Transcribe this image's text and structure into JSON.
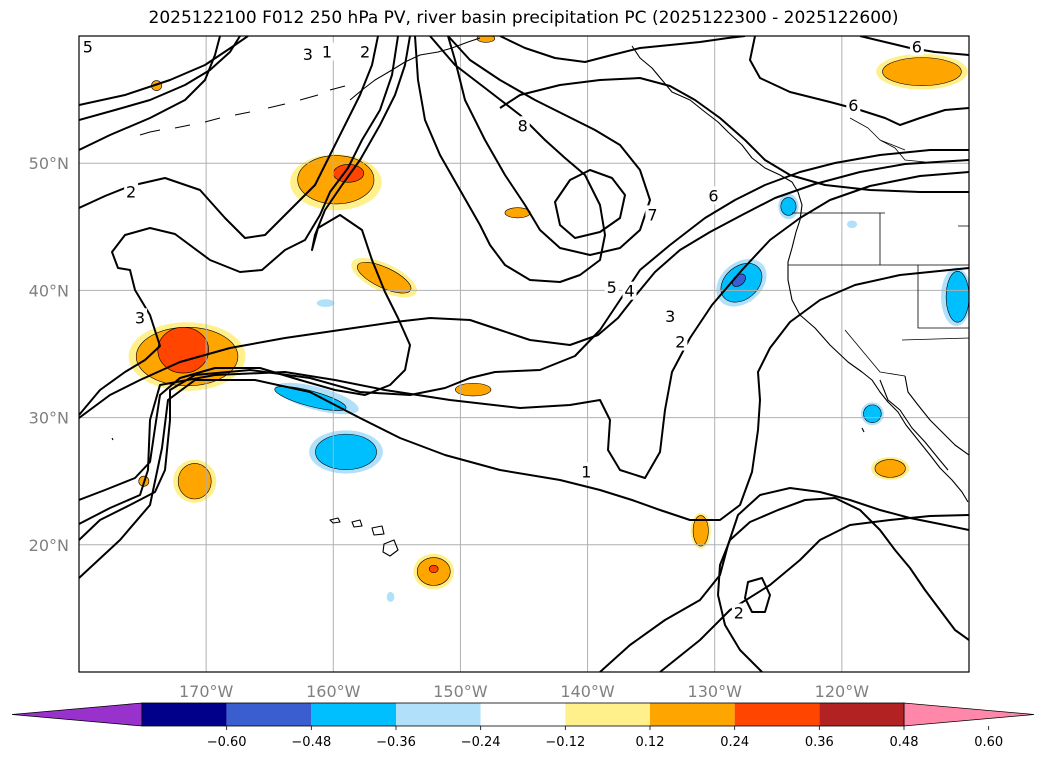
{
  "title": "2025122100 F012 250 hPa PV, river basin precipitation PC (2025122300 - 2025122600)",
  "map": {
    "lon_range": [
      -180,
      -110
    ],
    "lat_range": [
      10,
      60
    ],
    "lat_ticks": [
      {
        "value": 50,
        "label": "50°N"
      },
      {
        "value": 40,
        "label": "40°N"
      },
      {
        "value": 30,
        "label": "30°N"
      },
      {
        "value": 20,
        "label": "20°N"
      }
    ],
    "lon_ticks": [
      {
        "value": -170,
        "label": "170°W"
      },
      {
        "value": -160,
        "label": "160°W"
      },
      {
        "value": -150,
        "label": "150°W"
      },
      {
        "value": -140,
        "label": "140°W"
      },
      {
        "value": -130,
        "label": "130°W"
      },
      {
        "value": -120,
        "label": "120°W"
      }
    ],
    "grid": true,
    "contour_labels": [
      {
        "text": "1",
        "lon": -160.5,
        "lat": 58.7
      },
      {
        "text": "2",
        "lon": -157.5,
        "lat": 58.7
      },
      {
        "text": "3",
        "lon": -162,
        "lat": 58.5
      },
      {
        "text": "5",
        "lon": -179.3,
        "lat": 59.1
      },
      {
        "text": "2",
        "lon": -175.9,
        "lat": 47.7
      },
      {
        "text": "3",
        "lon": -175.2,
        "lat": 37.8
      },
      {
        "text": "8",
        "lon": -145.1,
        "lat": 52.9
      },
      {
        "text": "6",
        "lon": -114.1,
        "lat": 59.1
      },
      {
        "text": "6",
        "lon": -119.1,
        "lat": 54.5
      },
      {
        "text": "6",
        "lon": -130.1,
        "lat": 47.4
      },
      {
        "text": "7",
        "lon": -134.9,
        "lat": 45.9
      },
      {
        "text": "5",
        "lon": -138.1,
        "lat": 40.2
      },
      {
        "text": "4",
        "lon": -136.7,
        "lat": 39.9
      },
      {
        "text": "3",
        "lon": -133.5,
        "lat": 37.9
      },
      {
        "text": "2",
        "lon": -132.7,
        "lat": 35.9
      },
      {
        "text": "1",
        "lon": -140.1,
        "lat": 25.7
      },
      {
        "text": "2",
        "lon": -128.1,
        "lat": 14.6
      }
    ],
    "precip_regions": [
      {
        "color": "#fff08c",
        "lon": -159.8,
        "lat": 48.5,
        "rx": 3.6,
        "ry": 2.2,
        "rot": 0
      },
      {
        "color": "#ffa500",
        "lon": -159.8,
        "lat": 48.7,
        "rx": 3.0,
        "ry": 1.9,
        "rot": 0
      },
      {
        "color": "#ff4500",
        "lon": -158.8,
        "lat": 49.2,
        "rx": 1.2,
        "ry": 0.7,
        "rot": 0
      },
      {
        "color": "#fff08c",
        "lon": -156.0,
        "lat": 41.0,
        "rx": 2.8,
        "ry": 1.1,
        "rot": 25
      },
      {
        "color": "#ffa500",
        "lon": -156.0,
        "lat": 41.0,
        "rx": 2.3,
        "ry": 0.8,
        "rot": 25
      },
      {
        "color": "#fff08c",
        "lon": -171.5,
        "lat": 34.8,
        "rx": 4.6,
        "ry": 2.7,
        "rot": 0
      },
      {
        "color": "#ffa500",
        "lon": -171.5,
        "lat": 34.8,
        "rx": 4.0,
        "ry": 2.3,
        "rot": 0
      },
      {
        "color": "#ff4500",
        "lon": -171.8,
        "lat": 35.3,
        "rx": 2.0,
        "ry": 1.8,
        "rot": 0
      },
      {
        "color": "#fff08c",
        "lon": -170.9,
        "lat": 25.0,
        "rx": 1.7,
        "ry": 1.7,
        "rot": 0
      },
      {
        "color": "#ffa500",
        "lon": -170.9,
        "lat": 25.0,
        "rx": 1.3,
        "ry": 1.4,
        "rot": 0
      },
      {
        "color": "#ffa500",
        "lon": -174.9,
        "lat": 25.0,
        "rx": 0.4,
        "ry": 0.4,
        "rot": 0
      },
      {
        "color": "#ffa500",
        "lon": -149.0,
        "lat": 32.2,
        "rx": 1.4,
        "ry": 0.5,
        "rot": 0
      },
      {
        "color": "#ffa500",
        "lon": -145.5,
        "lat": 46.1,
        "rx": 1.0,
        "ry": 0.4,
        "rot": 0
      },
      {
        "color": "#ffa500",
        "lon": -173.9,
        "lat": 56.1,
        "rx": 0.4,
        "ry": 0.4,
        "rot": 0
      },
      {
        "color": "#ffa500",
        "lon": -148.0,
        "lat": 59.8,
        "rx": 0.7,
        "ry": 0.3,
        "rot": 0
      },
      {
        "color": "#fff08c",
        "lon": -131.1,
        "lat": 21.1,
        "rx": 0.8,
        "ry": 1.4,
        "rot": 0
      },
      {
        "color": "#ffa500",
        "lon": -131.1,
        "lat": 21.1,
        "rx": 0.6,
        "ry": 1.2,
        "rot": 0
      },
      {
        "color": "#fff08c",
        "lon": -152.1,
        "lat": 17.9,
        "rx": 1.6,
        "ry": 1.4,
        "rot": 0
      },
      {
        "color": "#ffa500",
        "lon": -152.1,
        "lat": 17.9,
        "rx": 1.3,
        "ry": 1.1,
        "rot": 0
      },
      {
        "color": "#ff4500",
        "lon": -152.1,
        "lat": 18.1,
        "rx": 0.35,
        "ry": 0.3,
        "rot": 0
      },
      {
        "color": "#fff08c",
        "lon": -113.7,
        "lat": 57.2,
        "rx": 3.6,
        "ry": 1.4,
        "rot": 0
      },
      {
        "color": "#ffa500",
        "lon": -113.7,
        "lat": 57.2,
        "rx": 3.1,
        "ry": 1.1,
        "rot": 0
      },
      {
        "color": "#fff08c",
        "lon": -116.2,
        "lat": 26.0,
        "rx": 1.5,
        "ry": 0.9,
        "rot": 0
      },
      {
        "color": "#ffa500",
        "lon": -116.2,
        "lat": 26.0,
        "rx": 1.2,
        "ry": 0.7,
        "rot": 0
      },
      {
        "color": "#b0e0fa",
        "lon": -161.3,
        "lat": 31.5,
        "rx": 3.4,
        "ry": 0.9,
        "rot": 15
      },
      {
        "color": "#00bfff",
        "lon": -161.8,
        "lat": 31.5,
        "rx": 2.9,
        "ry": 0.6,
        "rot": 15
      },
      {
        "color": "#b0e0fa",
        "lon": -159.0,
        "lat": 27.3,
        "rx": 2.9,
        "ry": 1.7,
        "rot": 0
      },
      {
        "color": "#00bfff",
        "lon": -159.0,
        "lat": 27.3,
        "rx": 2.4,
        "ry": 1.4,
        "rot": 0
      },
      {
        "color": "#b0e0fa",
        "lon": -127.9,
        "lat": 40.6,
        "rx": 2.2,
        "ry": 1.6,
        "rot": -40
      },
      {
        "color": "#00bfff",
        "lon": -127.9,
        "lat": 40.6,
        "rx": 1.8,
        "ry": 1.3,
        "rot": -40
      },
      {
        "color": "#3a5ed0",
        "lon": -128.1,
        "lat": 40.8,
        "rx": 0.6,
        "ry": 0.4,
        "rot": -40
      },
      {
        "color": "#b0e0fa",
        "lon": -124.2,
        "lat": 46.6,
        "rx": 0.8,
        "ry": 1.0,
        "rot": 0
      },
      {
        "color": "#00bfff",
        "lon": -124.2,
        "lat": 46.6,
        "rx": 0.6,
        "ry": 0.7,
        "rot": 0
      },
      {
        "color": "#b0e0fa",
        "lon": -117.6,
        "lat": 30.3,
        "rx": 0.9,
        "ry": 0.9,
        "rot": 0
      },
      {
        "color": "#00bfff",
        "lon": -117.6,
        "lat": 30.3,
        "rx": 0.7,
        "ry": 0.7,
        "rot": 0
      },
      {
        "color": "#b0e0fa",
        "lon": -111.0,
        "lat": 39.5,
        "rx": 1.2,
        "ry": 2.3,
        "rot": 0
      },
      {
        "color": "#00bfff",
        "lon": -110.9,
        "lat": 39.5,
        "rx": 0.9,
        "ry": 2.0,
        "rot": 0
      },
      {
        "color": "#b0e0fa",
        "lon": -119.2,
        "lat": 45.2,
        "rx": 0.4,
        "ry": 0.3,
        "rot": 0
      },
      {
        "color": "#b0e0fa",
        "lon": -160.6,
        "lat": 39.0,
        "rx": 0.7,
        "ry": 0.3,
        "rot": 0
      },
      {
        "color": "#b0e0fa",
        "lon": -155.5,
        "lat": 15.9,
        "rx": 0.3,
        "ry": 0.4,
        "rot": 0
      }
    ]
  },
  "colorbar": {
    "colors": [
      "#9932cc",
      "#00008b",
      "#3a5ed0",
      "#00bfff",
      "#b0e0fa",
      "#ffffff",
      "#fff08c",
      "#ffa500",
      "#ff4500",
      "#b22222",
      "#ff88aa"
    ],
    "extend": "both",
    "tick_labels": [
      "−0.60",
      "−0.48",
      "−0.36",
      "−0.24",
      "−0.12",
      "0.12",
      "0.24",
      "0.36",
      "0.48",
      "0.60"
    ]
  }
}
